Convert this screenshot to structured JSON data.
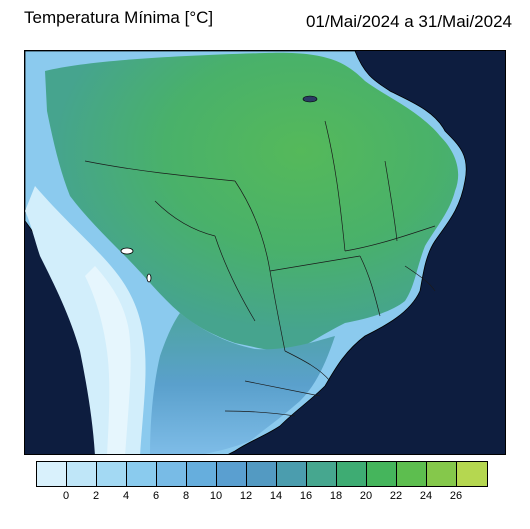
{
  "title": "Temperatura Mínima [°C]",
  "period": "01/Mai/2024 a 31/Mai/2024",
  "colorbar": {
    "colors": [
      "#d9f1fc",
      "#bfe6f8",
      "#a3d9f3",
      "#8acbee",
      "#78bbe6",
      "#66aedd",
      "#5a9fd0",
      "#539ac2",
      "#4b9dae",
      "#46a78f",
      "#3eac73",
      "#45b55c",
      "#5dbe4f",
      "#85c84b",
      "#b5d750"
    ],
    "labels": [
      "0",
      "2",
      "4",
      "6",
      "8",
      "10",
      "12",
      "14",
      "16",
      "18",
      "20",
      "22",
      "24",
      "26"
    ]
  }
}
